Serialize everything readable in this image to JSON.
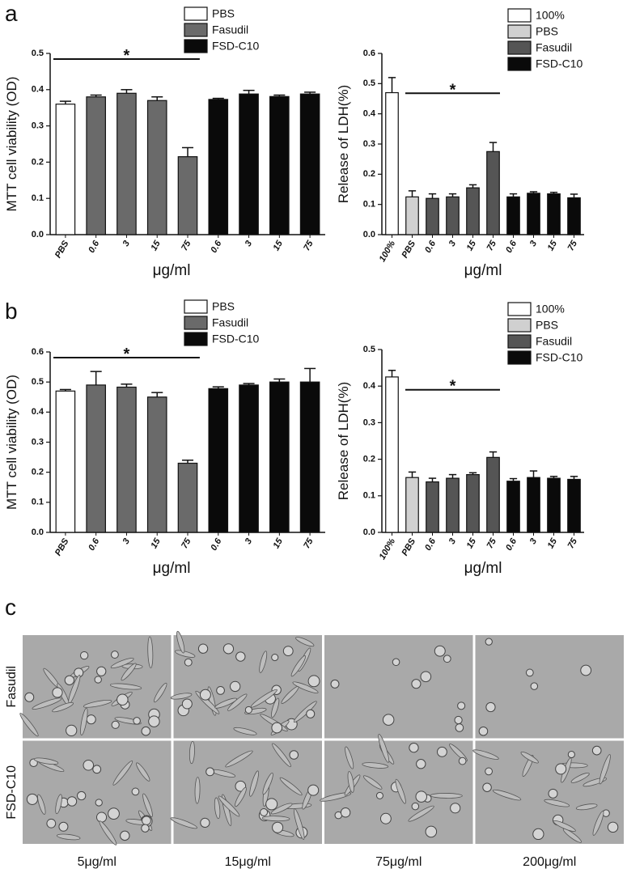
{
  "panel_labels": [
    "a",
    "b",
    "c"
  ],
  "chart_data": [
    {
      "type": "bar",
      "y_label": "MTT  cell  viability (OD)",
      "x_label": "μg/ml",
      "categories": [
        "PBS",
        "0.6",
        "3",
        "15",
        "75",
        "0.6",
        "3",
        "15",
        "75"
      ],
      "series": [
        {
          "name": "PBS",
          "color": "#ffffff",
          "values": [
            0.36,
            null,
            null,
            null,
            null,
            null,
            null,
            null,
            null
          ],
          "errors": [
            0.008,
            null,
            null,
            null,
            null,
            null,
            null,
            null,
            null
          ]
        },
        {
          "name": "Fasudil",
          "color": "#6a6a6a",
          "values": [
            null,
            0.38,
            0.39,
            0.37,
            0.215,
            null,
            null,
            null,
            null
          ],
          "errors": [
            null,
            0.005,
            0.01,
            0.01,
            0.025,
            null,
            null,
            null,
            null
          ]
        },
        {
          "name": "FSD-C10",
          "color": "#0a0a0a",
          "values": [
            null,
            null,
            null,
            null,
            null,
            0.373,
            0.388,
            0.381,
            0.388
          ],
          "errors": [
            null,
            null,
            null,
            null,
            null,
            0.003,
            0.01,
            0.004,
            0.005
          ]
        }
      ],
      "ylim": [
        0,
        0.5
      ],
      "yticks": [
        {
          "value": 0,
          "label": "0.0"
        },
        0.1,
        0.2,
        0.3,
        0.4,
        0.5
      ],
      "annotations": [
        "*"
      ]
    },
    {
      "type": "bar",
      "y_label": "Release  of  LDH(%)",
      "x_label": "μg/ml",
      "categories": [
        "100%",
        "PBS",
        "0.6",
        "3",
        "15",
        "75",
        "0.6",
        "3",
        "15",
        "75"
      ],
      "series": [
        {
          "name": "100%",
          "color": "#ffffff",
          "values": [
            0.47,
            null,
            null,
            null,
            null,
            null,
            null,
            null,
            null,
            null
          ],
          "errors": [
            0.05,
            null,
            null,
            null,
            null,
            null,
            null,
            null,
            null,
            null
          ]
        },
        {
          "name": "PBS",
          "color": "#d0d0d0",
          "values": [
            null,
            0.125,
            null,
            null,
            null,
            null,
            null,
            null,
            null,
            null
          ],
          "errors": [
            null,
            0.02,
            null,
            null,
            null,
            null,
            null,
            null,
            null,
            null
          ]
        },
        {
          "name": "Fasudil",
          "color": "#555555",
          "values": [
            null,
            null,
            0.12,
            0.125,
            0.155,
            0.275,
            null,
            null,
            null,
            null
          ],
          "errors": [
            null,
            null,
            0.015,
            0.01,
            0.01,
            0.03,
            null,
            null,
            null,
            null
          ]
        },
        {
          "name": "FSD-C10",
          "color": "#0a0a0a",
          "values": [
            null,
            null,
            null,
            null,
            null,
            null,
            0.125,
            0.137,
            0.135,
            0.122
          ],
          "errors": [
            null,
            null,
            null,
            null,
            null,
            null,
            0.01,
            0.005,
            0.005,
            0.012
          ]
        }
      ],
      "ylim": [
        0,
        0.6
      ],
      "yticks": [
        {
          "value": 0,
          "label": "0.0"
        },
        0.1,
        0.2,
        0.3,
        0.4,
        0.5,
        0.6
      ],
      "annotations": [
        "*"
      ]
    },
    {
      "type": "bar",
      "y_label": "MTT  cell  viability (OD)",
      "x_label": "μg/ml",
      "categories": [
        "PBS",
        "0.6",
        "3",
        "15",
        "75",
        "0.6",
        "3",
        "15",
        "75"
      ],
      "series": [
        {
          "name": "PBS",
          "color": "#ffffff",
          "values": [
            0.47,
            null,
            null,
            null,
            null,
            null,
            null,
            null,
            null
          ],
          "errors": [
            0.005,
            null,
            null,
            null,
            null,
            null,
            null,
            null,
            null
          ]
        },
        {
          "name": "Fasudil",
          "color": "#6a6a6a",
          "values": [
            null,
            0.49,
            0.483,
            0.45,
            0.23,
            null,
            null,
            null,
            null
          ],
          "errors": [
            null,
            0.045,
            0.01,
            0.015,
            0.01,
            null,
            null,
            null,
            null
          ]
        },
        {
          "name": "FSD-C10",
          "color": "#0a0a0a",
          "values": [
            null,
            null,
            null,
            null,
            null,
            0.478,
            0.49,
            0.5,
            0.5
          ],
          "errors": [
            null,
            null,
            null,
            null,
            null,
            0.006,
            0.005,
            0.01,
            0.045
          ]
        }
      ],
      "ylim": [
        0,
        0.6
      ],
      "yticks": [
        {
          "value": 0,
          "label": "0.0"
        },
        0.1,
        0.2,
        0.3,
        0.4,
        0.5,
        0.6
      ],
      "annotations": [
        "*"
      ]
    },
    {
      "type": "bar",
      "y_label": "Release  of  LDH(%)",
      "x_label": "μg/ml",
      "categories": [
        "100%",
        "PBS",
        "0.6",
        "3",
        "15",
        "75",
        "0.6",
        "3",
        "15",
        "75"
      ],
      "series": [
        {
          "name": "100%",
          "color": "#ffffff",
          "values": [
            0.425,
            null,
            null,
            null,
            null,
            null,
            null,
            null,
            null,
            null
          ],
          "errors": [
            0.018,
            null,
            null,
            null,
            null,
            null,
            null,
            null,
            null,
            null
          ]
        },
        {
          "name": "PBS",
          "color": "#d0d0d0",
          "values": [
            null,
            0.15,
            null,
            null,
            null,
            null,
            null,
            null,
            null,
            null
          ],
          "errors": [
            null,
            0.015,
            null,
            null,
            null,
            null,
            null,
            null,
            null,
            null
          ]
        },
        {
          "name": "Fasudil",
          "color": "#555555",
          "values": [
            null,
            null,
            0.138,
            0.148,
            0.158,
            0.205,
            null,
            null,
            null,
            null
          ],
          "errors": [
            null,
            null,
            0.01,
            0.01,
            0.005,
            0.015,
            null,
            null,
            null,
            null
          ]
        },
        {
          "name": "FSD-C10",
          "color": "#0a0a0a",
          "values": [
            null,
            null,
            null,
            null,
            null,
            null,
            0.14,
            0.15,
            0.148,
            0.145
          ],
          "errors": [
            null,
            null,
            null,
            null,
            null,
            null,
            0.007,
            0.018,
            0.005,
            0.008
          ]
        }
      ],
      "ylim": [
        0,
        0.5
      ],
      "yticks": [
        {
          "value": 0,
          "label": "0.0"
        },
        0.1,
        0.2,
        0.3,
        0.4,
        0.5
      ],
      "annotations": [
        "*"
      ]
    }
  ],
  "panel_c": {
    "rows": [
      "Fasudil",
      "FSD-C10"
    ],
    "columns": [
      "5μg/ml",
      "15μg/ml",
      "75μg/ml",
      "200μg/ml"
    ]
  }
}
